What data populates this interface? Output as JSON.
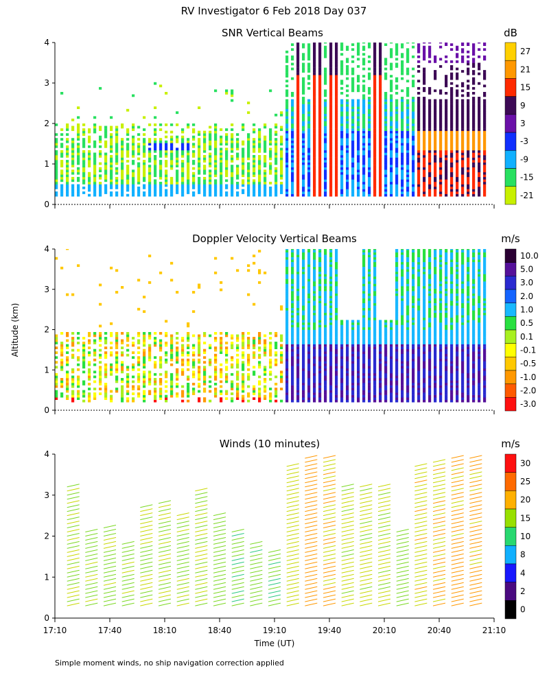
{
  "figure_title": "RV Investigator   6 Feb 2018 Day 037",
  "shared_ylabel": "Altitude (km)",
  "shared_xlabel": "Time (UT)",
  "footnote": "Simple moment winds, no ship navigation correction applied",
  "time_ticks": [
    "17:10",
    "17:40",
    "18:10",
    "18:40",
    "19:10",
    "19:40",
    "20:10",
    "20:40",
    "21:10"
  ],
  "altitude_ticks": [
    "0",
    "1",
    "2",
    "3",
    "4"
  ],
  "chart_data": [
    {
      "type": "heatmap",
      "title": "SNR Vertical Beams",
      "unit": "dB",
      "xlim": [
        "17:10",
        "21:10"
      ],
      "ylim": [
        0,
        4
      ],
      "colorbar_ticks": [
        "27",
        "21",
        "15",
        "9",
        "3",
        "-3",
        "-9",
        "-15",
        "-21"
      ],
      "colorbar_colors": [
        "#ffd000",
        "#ff9800",
        "#ff2a00",
        "#3d0a55",
        "#6a10a8",
        "#1030ff",
        "#10b0ff",
        "#28e060",
        "#c8f000"
      ],
      "regimes": [
        {
          "time_range": [
            "17:10",
            "19:15"
          ],
          "altitude_km": [
            0.2,
            2.0
          ],
          "snr_db": [
            -21,
            -9
          ]
        },
        {
          "time_range": [
            "19:15",
            "21:10"
          ],
          "altitude_km": [
            0.2,
            4.0
          ],
          "snr_db": [
            -9,
            27
          ]
        }
      ]
    },
    {
      "type": "heatmap",
      "title": "Doppler Velocity Vertical Beams",
      "unit": "m/s",
      "xlim": [
        "17:10",
        "21:10"
      ],
      "ylim": [
        0,
        4
      ],
      "colorbar_ticks": [
        "10.0",
        "5.0",
        "3.0",
        "2.0",
        "1.0",
        "0.5",
        "0.1",
        "-0.1",
        "-0.5",
        "-1.0",
        "-2.0",
        "-3.0"
      ],
      "colorbar_colors": [
        "#2a0033",
        "#55109a",
        "#2a2ad0",
        "#1464ff",
        "#18b8ff",
        "#28e040",
        "#a8f020",
        "#ffff00",
        "#ffc800",
        "#ff9800",
        "#ff5a00",
        "#ff1010"
      ],
      "regimes": [
        {
          "time_range": [
            "17:10",
            "19:15"
          ],
          "altitude_km": [
            0.2,
            1.9
          ],
          "velocity_ms": [
            -1.0,
            0.5
          ]
        },
        {
          "time_range": [
            "19:15",
            "21:10"
          ],
          "altitude_km": [
            0.2,
            1.6
          ],
          "velocity_ms": [
            3.0,
            5.0
          ]
        },
        {
          "time_range": [
            "19:15",
            "21:10"
          ],
          "altitude_km": [
            1.6,
            4.0
          ],
          "velocity_ms": [
            0.5,
            2.0
          ]
        }
      ]
    },
    {
      "type": "scatter",
      "title": "Winds (10 minutes)",
      "unit": "m/s",
      "xlim": [
        "17:10",
        "21:10"
      ],
      "ylim": [
        0,
        4
      ],
      "colorbar_ticks": [
        "30",
        "25",
        "20",
        "15",
        "10",
        "8",
        "4",
        "2",
        "0"
      ],
      "colorbar_colors": [
        "#ff1010",
        "#ff6a00",
        "#ffb000",
        "#98e000",
        "#28d870",
        "#10b0ff",
        "#1818ff",
        "#4a0a80",
        "#000000"
      ],
      "wind_profiles": [
        {
          "time": "17:20",
          "top_km": 3.3,
          "speed_ms": 18
        },
        {
          "time": "17:30",
          "top_km": 2.2,
          "speed_ms": 17
        },
        {
          "time": "17:40",
          "top_km": 2.3,
          "speed_ms": 17
        },
        {
          "time": "17:50",
          "top_km": 1.9,
          "speed_ms": 17
        },
        {
          "time": "18:00",
          "top_km": 2.8,
          "speed_ms": 18
        },
        {
          "time": "18:10",
          "top_km": 2.9,
          "speed_ms": 18
        },
        {
          "time": "18:20",
          "top_km": 2.6,
          "speed_ms": 17
        },
        {
          "time": "18:30",
          "top_km": 3.2,
          "speed_ms": 18
        },
        {
          "time": "18:40",
          "top_km": 2.6,
          "speed_ms": 16
        },
        {
          "time": "18:50",
          "top_km": 2.2,
          "speed_ms": 15
        },
        {
          "time": "19:00",
          "top_km": 1.9,
          "speed_ms": 15
        },
        {
          "time": "19:10",
          "top_km": 1.7,
          "speed_ms": 15
        },
        {
          "time": "19:20",
          "top_km": 3.8,
          "speed_ms": 20
        },
        {
          "time": "19:30",
          "top_km": 4.0,
          "speed_ms": 24
        },
        {
          "time": "19:40",
          "top_km": 4.0,
          "speed_ms": 22
        },
        {
          "time": "19:50",
          "top_km": 3.3,
          "speed_ms": 19
        },
        {
          "time": "20:00",
          "top_km": 3.3,
          "speed_ms": 19
        },
        {
          "time": "20:10",
          "top_km": 3.3,
          "speed_ms": 19
        },
        {
          "time": "20:20",
          "top_km": 2.2,
          "speed_ms": 16
        },
        {
          "time": "20:30",
          "top_km": 3.8,
          "speed_ms": 21
        },
        {
          "time": "20:40",
          "top_km": 3.9,
          "speed_ms": 22
        },
        {
          "time": "20:50",
          "top_km": 4.0,
          "speed_ms": 23
        },
        {
          "time": "21:00",
          "top_km": 4.0,
          "speed_ms": 23
        }
      ]
    }
  ]
}
